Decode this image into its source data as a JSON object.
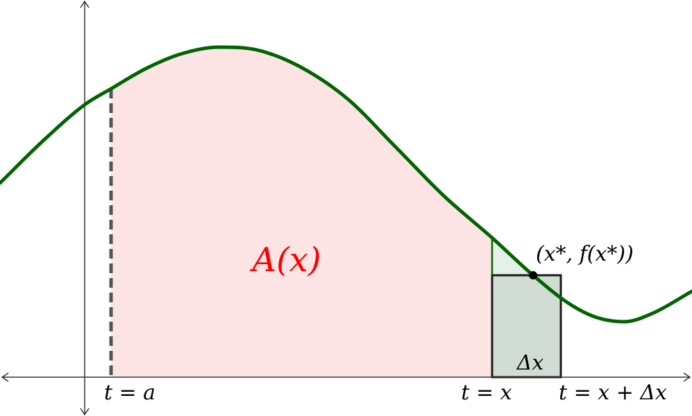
{
  "labels": {
    "area": "A(x)",
    "point": "(x*, f(x*))",
    "t_a": "t = a",
    "t_x": "t = x",
    "t_x_dx": "t = x + Δx",
    "delta": "Δx"
  },
  "colors": {
    "curve": "#006400",
    "area_fill": "#fde4e4",
    "area_label": "#ff0000",
    "rect_fill": "#d0dcd4",
    "sliver_fill": "#e4f0e8",
    "axis": "#333333",
    "dashed": "#555555"
  }
}
